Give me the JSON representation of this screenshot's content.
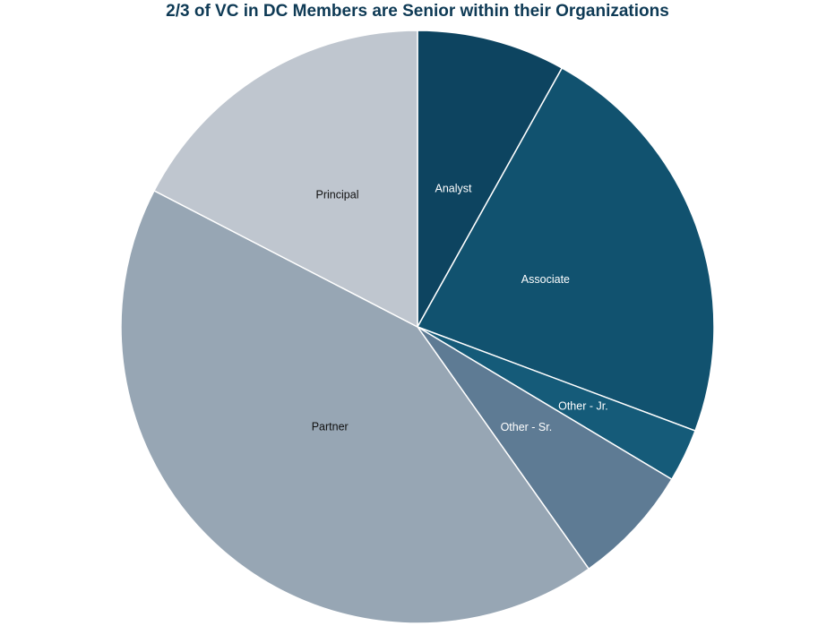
{
  "chart_data": {
    "type": "pie",
    "title": "2/3 of VC in DC Members are Senior within their Organizations",
    "slices": [
      {
        "label": "Analyst",
        "value": 8.1,
        "color": "#0d4460",
        "label_color": "#ffffff"
      },
      {
        "label": "Associate",
        "value": 22.6,
        "color": "#11526f",
        "label_color": "#ffffff"
      },
      {
        "label": "Other - Jr.",
        "value": 2.9,
        "color": "#155b79",
        "label_color": "#ffffff"
      },
      {
        "label": "Other - Sr.",
        "value": 6.6,
        "color": "#5e7b94",
        "label_color": "#ffffff"
      },
      {
        "label": "Partner",
        "value": 42.4,
        "color": "#97a6b4",
        "label_color": "#111111"
      },
      {
        "label": "Principal",
        "value": 17.4,
        "color": "#bfc6cf",
        "label_color": "#111111"
      }
    ],
    "start_angle": "12 o'clock",
    "direction": "clockwise",
    "legend": "none",
    "title_color": "#0e3a55"
  }
}
